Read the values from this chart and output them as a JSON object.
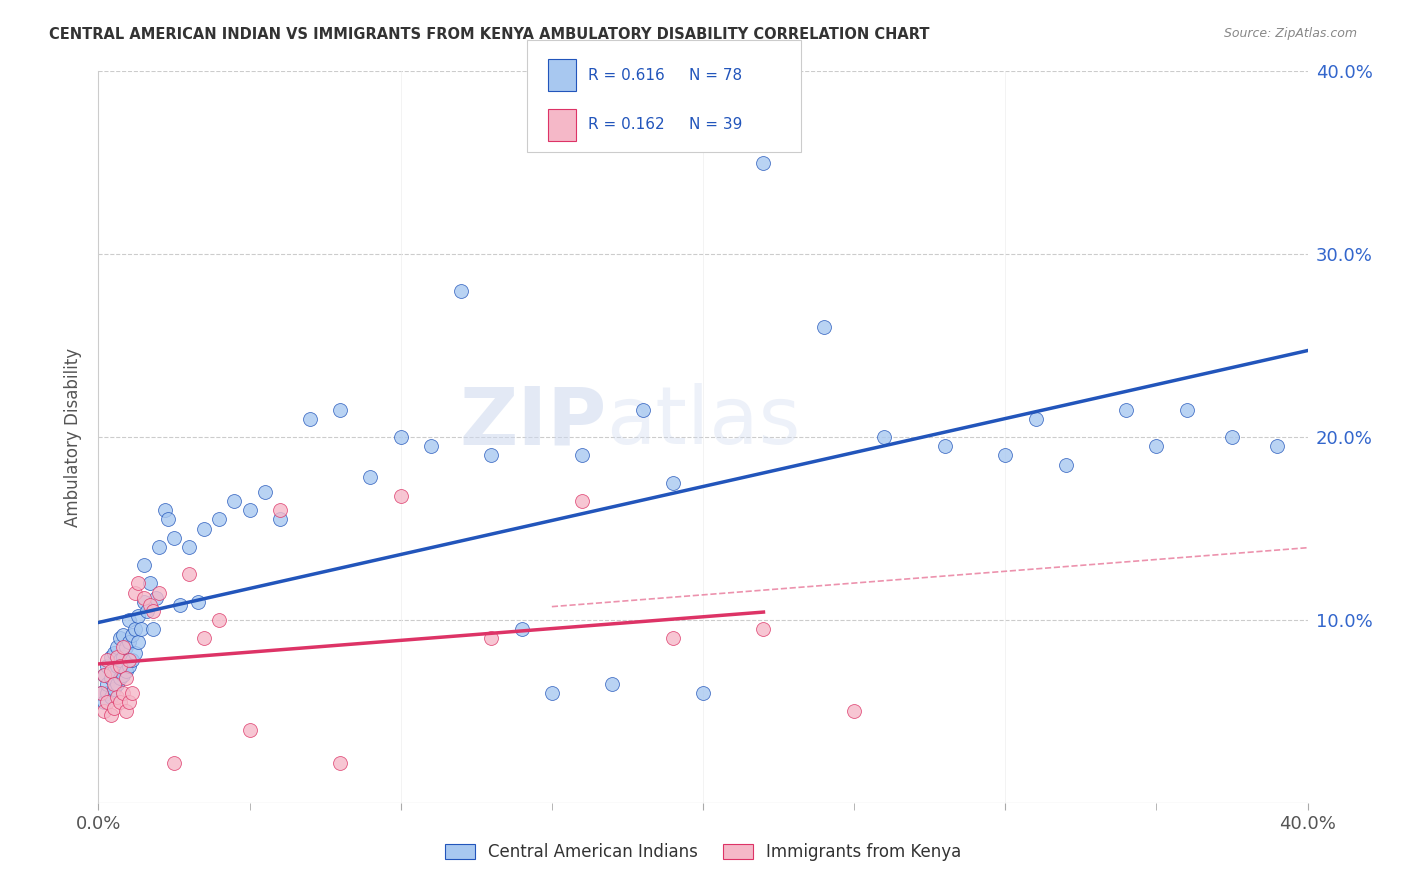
{
  "title": "CENTRAL AMERICAN INDIAN VS IMMIGRANTS FROM KENYA AMBULATORY DISABILITY CORRELATION CHART",
  "source": "Source: ZipAtlas.com",
  "ylabel": "Ambulatory Disability",
  "xlim": [
    0.0,
    0.4
  ],
  "ylim": [
    0.0,
    0.4
  ],
  "blue_color": "#a8c8f0",
  "pink_color": "#f5b8c8",
  "line_blue": "#2255bb",
  "line_pink": "#dd3366",
  "dashed_pink": "#e87799",
  "watermark": "ZIPatlas",
  "legend_r1": "R = 0.616",
  "legend_n1": "N = 78",
  "legend_r2": "R = 0.162",
  "legend_n2": "N = 39",
  "blue_scatter_x": [
    0.001,
    0.002,
    0.002,
    0.003,
    0.003,
    0.003,
    0.004,
    0.004,
    0.004,
    0.005,
    0.005,
    0.005,
    0.006,
    0.006,
    0.006,
    0.007,
    0.007,
    0.007,
    0.008,
    0.008,
    0.008,
    0.009,
    0.009,
    0.01,
    0.01,
    0.01,
    0.011,
    0.011,
    0.012,
    0.012,
    0.013,
    0.013,
    0.014,
    0.015,
    0.015,
    0.016,
    0.017,
    0.018,
    0.019,
    0.02,
    0.022,
    0.023,
    0.025,
    0.027,
    0.03,
    0.033,
    0.035,
    0.04,
    0.045,
    0.05,
    0.055,
    0.06,
    0.07,
    0.08,
    0.09,
    0.1,
    0.11,
    0.12,
    0.13,
    0.14,
    0.15,
    0.16,
    0.17,
    0.18,
    0.19,
    0.2,
    0.22,
    0.24,
    0.26,
    0.28,
    0.3,
    0.31,
    0.32,
    0.34,
    0.35,
    0.36,
    0.375,
    0.39
  ],
  "blue_scatter_y": [
    0.06,
    0.055,
    0.07,
    0.06,
    0.065,
    0.075,
    0.058,
    0.068,
    0.08,
    0.062,
    0.072,
    0.082,
    0.065,
    0.075,
    0.085,
    0.068,
    0.078,
    0.09,
    0.07,
    0.08,
    0.092,
    0.072,
    0.085,
    0.075,
    0.088,
    0.1,
    0.078,
    0.092,
    0.082,
    0.095,
    0.088,
    0.102,
    0.095,
    0.11,
    0.13,
    0.105,
    0.12,
    0.095,
    0.112,
    0.14,
    0.16,
    0.155,
    0.145,
    0.108,
    0.14,
    0.11,
    0.15,
    0.155,
    0.165,
    0.16,
    0.17,
    0.155,
    0.21,
    0.215,
    0.178,
    0.2,
    0.195,
    0.28,
    0.19,
    0.095,
    0.06,
    0.19,
    0.065,
    0.215,
    0.175,
    0.06,
    0.35,
    0.26,
    0.2,
    0.195,
    0.19,
    0.21,
    0.185,
    0.215,
    0.195,
    0.215,
    0.2,
    0.195
  ],
  "pink_scatter_x": [
    0.001,
    0.002,
    0.002,
    0.003,
    0.003,
    0.004,
    0.004,
    0.005,
    0.005,
    0.006,
    0.006,
    0.007,
    0.007,
    0.008,
    0.008,
    0.009,
    0.009,
    0.01,
    0.01,
    0.011,
    0.012,
    0.013,
    0.015,
    0.017,
    0.018,
    0.02,
    0.025,
    0.03,
    0.035,
    0.04,
    0.05,
    0.06,
    0.08,
    0.1,
    0.13,
    0.16,
    0.19,
    0.22,
    0.25
  ],
  "pink_scatter_y": [
    0.06,
    0.05,
    0.07,
    0.055,
    0.078,
    0.048,
    0.072,
    0.052,
    0.065,
    0.058,
    0.08,
    0.055,
    0.075,
    0.06,
    0.085,
    0.05,
    0.068,
    0.055,
    0.078,
    0.06,
    0.115,
    0.12,
    0.112,
    0.108,
    0.105,
    0.115,
    0.022,
    0.125,
    0.09,
    0.1,
    0.04,
    0.16,
    0.022,
    0.168,
    0.09,
    0.165,
    0.09,
    0.095,
    0.05
  ]
}
